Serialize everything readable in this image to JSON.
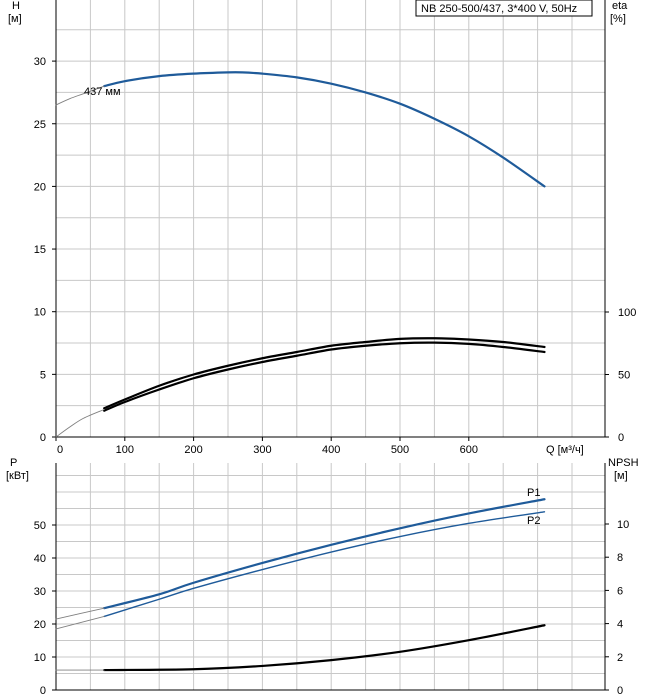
{
  "title": "NB 250-500/437, 3*400 V, 50Hz",
  "colors": {
    "blue": "#1f5b9a",
    "black": "#000000",
    "grid": "#c8c8c8",
    "thin": "#808080"
  },
  "chart_data": [
    {
      "type": "line",
      "name": "head",
      "title": "NB 250-500/437, 3*400 V, 50Hz",
      "x_label": "Q [м³/ч]",
      "y_left_label": [
        "H",
        "[м]"
      ],
      "y_right_label": [
        "eta",
        "[%]"
      ],
      "x_range": [
        0,
        800
      ],
      "x_ticks": [
        0,
        100,
        200,
        300,
        400,
        500,
        600
      ],
      "y_left_range": [
        0,
        35
      ],
      "y_left_ticks": [
        0,
        5,
        10,
        15,
        20,
        25,
        30
      ],
      "y_right_ticks": [
        0,
        50,
        100
      ],
      "y_right_scale_at_left_zero": 0,
      "y_right_scale_100_at_left": 10,
      "grid": true,
      "series": [
        {
          "name": "437 мм",
          "axis": "left",
          "color": "#1f5b9a",
          "x": [
            70,
            100,
            150,
            200,
            250,
            270,
            300,
            350,
            400,
            450,
            500,
            550,
            600,
            650,
            710
          ],
          "y": [
            28.0,
            28.4,
            28.8,
            29.0,
            29.1,
            29.1,
            29.0,
            28.7,
            28.2,
            27.5,
            26.6,
            25.4,
            24.0,
            22.3,
            20.0
          ]
        },
        {
          "name": "",
          "axis": "left",
          "color": "#808080",
          "thin": true,
          "x": [
            0,
            20,
            40,
            70
          ],
          "y": [
            26.5,
            27.0,
            27.4,
            28.0
          ]
        },
        {
          "name": "eta",
          "axis": "right",
          "color": "#000000",
          "x": [
            70,
            100,
            150,
            200,
            250,
            300,
            350,
            400,
            450,
            500,
            550,
            600,
            650,
            710
          ],
          "y": [
            21,
            28,
            38,
            47,
            54,
            60,
            65,
            70,
            73,
            75,
            75.5,
            74.5,
            72,
            68
          ]
        },
        {
          "name": "eta2",
          "axis": "right",
          "color": "#000000",
          "x": [
            70,
            100,
            150,
            200,
            250,
            300,
            350,
            400,
            450,
            500,
            550,
            600,
            650,
            710
          ],
          "y": [
            23,
            30,
            41,
            50,
            57,
            63,
            68,
            73,
            76,
            78.5,
            79,
            78,
            76,
            72
          ]
        },
        {
          "name": "",
          "axis": "right",
          "color": "#808080",
          "thin": true,
          "x": [
            0,
            20,
            40,
            70
          ],
          "y": [
            0,
            8,
            15,
            22
          ]
        }
      ]
    },
    {
      "type": "line",
      "name": "power",
      "y_left_label": [
        "P",
        "[кВт]"
      ],
      "y_right_label": [
        "NPSH",
        "[м]"
      ],
      "x_range": [
        0,
        800
      ],
      "y_left_range": [
        0,
        60
      ],
      "y_left_ticks": [
        0,
        10,
        20,
        30,
        40,
        50
      ],
      "y_right_range": [
        0,
        12
      ],
      "y_right_ticks": [
        0,
        2,
        4,
        6,
        8,
        10
      ],
      "grid": true,
      "series": [
        {
          "name": "P1",
          "axis": "left",
          "color": "#1f5b9a",
          "x": [
            70,
            150,
            200,
            300,
            400,
            500,
            600,
            710
          ],
          "y": [
            24.8,
            29.0,
            32.5,
            38.5,
            44.0,
            49.0,
            53.5,
            57.8
          ]
        },
        {
          "name": "P2",
          "axis": "left",
          "color": "#1f5b9a",
          "x": [
            70,
            150,
            200,
            300,
            400,
            500,
            600,
            710
          ],
          "y": [
            22.3,
            27.5,
            30.8,
            36.5,
            41.8,
            46.5,
            50.5,
            54.0
          ]
        },
        {
          "name": "",
          "axis": "left",
          "color": "#808080",
          "thin": true,
          "x": [
            0,
            70
          ],
          "y": [
            21.5,
            24.8
          ]
        },
        {
          "name": "",
          "axis": "left",
          "color": "#808080",
          "thin": true,
          "x": [
            0,
            70
          ],
          "y": [
            18.5,
            22.3
          ]
        },
        {
          "name": "NPSH",
          "axis": "right",
          "color": "#000000",
          "x": [
            70,
            200,
            300,
            400,
            500,
            600,
            710
          ],
          "y": [
            1.2,
            1.25,
            1.45,
            1.8,
            2.3,
            3.0,
            3.9
          ]
        },
        {
          "name": "",
          "axis": "right",
          "color": "#808080",
          "thin": true,
          "x": [
            0,
            70
          ],
          "y": [
            1.2,
            1.2
          ]
        }
      ]
    }
  ]
}
